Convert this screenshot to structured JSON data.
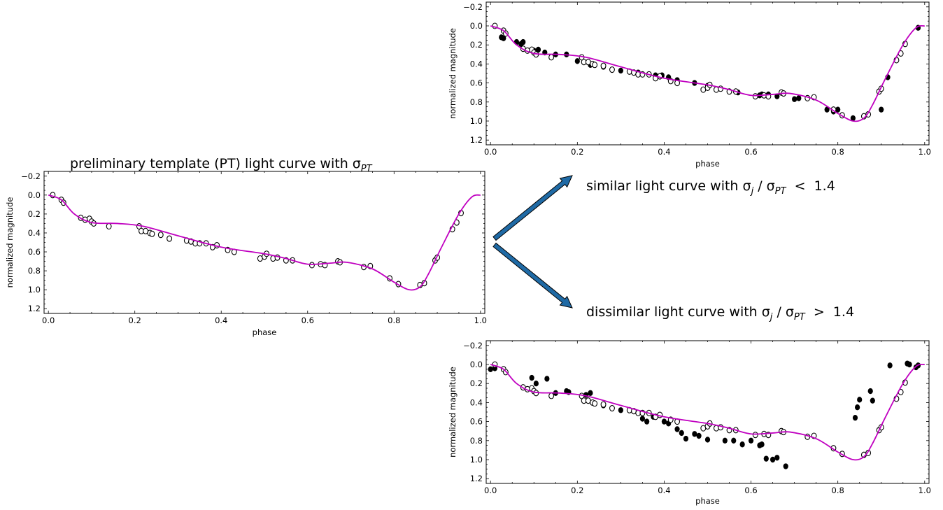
{
  "annotations": {
    "pt_title": "preliminary template (PT) light curve with σ",
    "pt_title_sub": "PT",
    "similar_prefix": "similar light curve with σ",
    "similar_sub_j": "j",
    "similar_mid": " / σ",
    "similar_sub_pt": "PT",
    "similar_rel": "  <  1.4",
    "dissimilar_prefix": "dissimilar light curve with σ",
    "dissimilar_sub_j": "j",
    "dissimilar_mid": " / σ",
    "dissimilar_sub_pt": "PT",
    "dissimilar_rel": "  >  1.4"
  },
  "colors": {
    "template": "#c000c0",
    "arrow_fill": "#1f6aa5",
    "arrow_edge": "#000000",
    "points": "#000000",
    "open_fill": "#ffffff"
  },
  "chart_data": [
    {
      "id": "preliminary-template",
      "type": "scatter",
      "title": "",
      "xlabel": "phase",
      "ylabel": "normalized magnitude",
      "xlim": [
        -0.01,
        1.01
      ],
      "ylim": [
        -0.25,
        1.25
      ],
      "y_inverted": true,
      "xticks": [
        "0.0",
        "0.2",
        "0.4",
        "0.6",
        "0.8",
        "1.0"
      ],
      "yticks": [
        "−0.2",
        "0.0",
        "0.2",
        "0.4",
        "0.6",
        "0.8",
        "1.0",
        "1.2"
      ],
      "grid": false,
      "template_curve": [
        [
          0.0,
          0.0
        ],
        [
          0.03,
          0.05
        ],
        [
          0.06,
          0.2
        ],
        [
          0.1,
          0.29
        ],
        [
          0.16,
          0.3
        ],
        [
          0.22,
          0.33
        ],
        [
          0.3,
          0.43
        ],
        [
          0.4,
          0.55
        ],
        [
          0.5,
          0.62
        ],
        [
          0.55,
          0.67
        ],
        [
          0.6,
          0.73
        ],
        [
          0.65,
          0.72
        ],
        [
          0.69,
          0.71
        ],
        [
          0.75,
          0.78
        ],
        [
          0.8,
          0.92
        ],
        [
          0.835,
          1.0
        ],
        [
          0.86,
          0.97
        ],
        [
          0.88,
          0.83
        ],
        [
          0.91,
          0.55
        ],
        [
          0.95,
          0.2
        ],
        [
          0.98,
          0.02
        ],
        [
          1.0,
          0.0
        ]
      ],
      "open_points": [
        [
          0.01,
          0.0
        ],
        [
          0.03,
          0.05
        ],
        [
          0.035,
          0.08
        ],
        [
          0.075,
          0.24
        ],
        [
          0.085,
          0.26
        ],
        [
          0.095,
          0.25
        ],
        [
          0.1,
          0.28
        ],
        [
          0.105,
          0.3
        ],
        [
          0.14,
          0.33
        ],
        [
          0.21,
          0.33
        ],
        [
          0.215,
          0.38
        ],
        [
          0.225,
          0.38
        ],
        [
          0.235,
          0.4
        ],
        [
          0.24,
          0.41
        ],
        [
          0.26,
          0.42
        ],
        [
          0.28,
          0.46
        ],
        [
          0.32,
          0.48
        ],
        [
          0.33,
          0.49
        ],
        [
          0.34,
          0.51
        ],
        [
          0.35,
          0.51
        ],
        [
          0.365,
          0.51
        ],
        [
          0.38,
          0.55
        ],
        [
          0.39,
          0.53
        ],
        [
          0.415,
          0.58
        ],
        [
          0.43,
          0.6
        ],
        [
          0.49,
          0.67
        ],
        [
          0.5,
          0.65
        ],
        [
          0.505,
          0.62
        ],
        [
          0.52,
          0.67
        ],
        [
          0.53,
          0.66
        ],
        [
          0.55,
          0.69
        ],
        [
          0.565,
          0.69
        ],
        [
          0.61,
          0.74
        ],
        [
          0.63,
          0.73
        ],
        [
          0.64,
          0.74
        ],
        [
          0.67,
          0.7
        ],
        [
          0.675,
          0.71
        ],
        [
          0.73,
          0.76
        ],
        [
          0.745,
          0.75
        ],
        [
          0.79,
          0.88
        ],
        [
          0.81,
          0.94
        ],
        [
          0.86,
          0.95
        ],
        [
          0.87,
          0.93
        ],
        [
          0.895,
          0.69
        ],
        [
          0.9,
          0.66
        ],
        [
          0.935,
          0.36
        ],
        [
          0.945,
          0.29
        ],
        [
          0.955,
          0.19
        ]
      ],
      "filled_points": []
    },
    {
      "id": "similar",
      "type": "scatter",
      "title": "",
      "xlabel": "phase",
      "ylabel": "normalized magnitude",
      "xlim": [
        -0.01,
        1.01
      ],
      "ylim": [
        -0.25,
        1.25
      ],
      "y_inverted": true,
      "xticks": [
        "0.0",
        "0.2",
        "0.4",
        "0.6",
        "0.8",
        "1.0"
      ],
      "yticks": [
        "−0.2",
        "0.0",
        "0.2",
        "0.4",
        "0.6",
        "0.8",
        "1.0",
        "1.2"
      ],
      "grid": false,
      "template_curve": [
        [
          0.0,
          0.0
        ],
        [
          0.03,
          0.05
        ],
        [
          0.06,
          0.2
        ],
        [
          0.1,
          0.29
        ],
        [
          0.16,
          0.3
        ],
        [
          0.22,
          0.33
        ],
        [
          0.3,
          0.43
        ],
        [
          0.4,
          0.55
        ],
        [
          0.5,
          0.62
        ],
        [
          0.55,
          0.67
        ],
        [
          0.6,
          0.73
        ],
        [
          0.65,
          0.72
        ],
        [
          0.69,
          0.71
        ],
        [
          0.75,
          0.78
        ],
        [
          0.8,
          0.92
        ],
        [
          0.835,
          1.0
        ],
        [
          0.86,
          0.97
        ],
        [
          0.88,
          0.83
        ],
        [
          0.91,
          0.55
        ],
        [
          0.95,
          0.2
        ],
        [
          0.98,
          0.02
        ],
        [
          1.0,
          0.0
        ]
      ],
      "open_points": [
        [
          0.01,
          0.0
        ],
        [
          0.03,
          0.05
        ],
        [
          0.035,
          0.08
        ],
        [
          0.075,
          0.24
        ],
        [
          0.085,
          0.26
        ],
        [
          0.095,
          0.25
        ],
        [
          0.1,
          0.28
        ],
        [
          0.105,
          0.3
        ],
        [
          0.14,
          0.33
        ],
        [
          0.21,
          0.33
        ],
        [
          0.215,
          0.38
        ],
        [
          0.225,
          0.38
        ],
        [
          0.235,
          0.4
        ],
        [
          0.24,
          0.41
        ],
        [
          0.26,
          0.42
        ],
        [
          0.28,
          0.46
        ],
        [
          0.32,
          0.48
        ],
        [
          0.33,
          0.49
        ],
        [
          0.34,
          0.51
        ],
        [
          0.35,
          0.51
        ],
        [
          0.365,
          0.51
        ],
        [
          0.38,
          0.55
        ],
        [
          0.39,
          0.53
        ],
        [
          0.415,
          0.58
        ],
        [
          0.43,
          0.6
        ],
        [
          0.49,
          0.67
        ],
        [
          0.5,
          0.65
        ],
        [
          0.505,
          0.62
        ],
        [
          0.52,
          0.67
        ],
        [
          0.53,
          0.66
        ],
        [
          0.55,
          0.69
        ],
        [
          0.565,
          0.69
        ],
        [
          0.61,
          0.74
        ],
        [
          0.63,
          0.73
        ],
        [
          0.64,
          0.74
        ],
        [
          0.67,
          0.7
        ],
        [
          0.675,
          0.71
        ],
        [
          0.73,
          0.76
        ],
        [
          0.745,
          0.75
        ],
        [
          0.79,
          0.88
        ],
        [
          0.81,
          0.94
        ],
        [
          0.86,
          0.95
        ],
        [
          0.87,
          0.93
        ],
        [
          0.895,
          0.69
        ],
        [
          0.9,
          0.66
        ],
        [
          0.935,
          0.36
        ],
        [
          0.945,
          0.29
        ],
        [
          0.955,
          0.19
        ]
      ],
      "filled_points": [
        [
          0.025,
          0.12
        ],
        [
          0.03,
          0.13
        ],
        [
          0.06,
          0.17
        ],
        [
          0.07,
          0.19
        ],
        [
          0.075,
          0.17
        ],
        [
          0.1,
          0.26
        ],
        [
          0.11,
          0.25
        ],
        [
          0.125,
          0.28
        ],
        [
          0.15,
          0.3
        ],
        [
          0.175,
          0.3
        ],
        [
          0.2,
          0.37
        ],
        [
          0.23,
          0.41
        ],
        [
          0.26,
          0.43
        ],
        [
          0.3,
          0.47
        ],
        [
          0.34,
          0.49
        ],
        [
          0.38,
          0.52
        ],
        [
          0.395,
          0.52
        ],
        [
          0.41,
          0.54
        ],
        [
          0.43,
          0.57
        ],
        [
          0.47,
          0.6
        ],
        [
          0.5,
          0.63
        ],
        [
          0.55,
          0.69
        ],
        [
          0.57,
          0.7
        ],
        [
          0.62,
          0.73
        ],
        [
          0.625,
          0.72
        ],
        [
          0.64,
          0.72
        ],
        [
          0.66,
          0.74
        ],
        [
          0.7,
          0.77
        ],
        [
          0.71,
          0.76
        ],
        [
          0.775,
          0.88
        ],
        [
          0.79,
          0.9
        ],
        [
          0.8,
          0.88
        ],
        [
          0.835,
          0.97
        ],
        [
          0.9,
          0.88
        ],
        [
          0.915,
          0.54
        ],
        [
          0.985,
          0.02
        ]
      ]
    },
    {
      "id": "dissimilar",
      "type": "scatter",
      "title": "",
      "xlabel": "phase",
      "ylabel": "normalized magnitude",
      "xlim": [
        -0.01,
        1.01
      ],
      "ylim": [
        -0.25,
        1.25
      ],
      "y_inverted": true,
      "xticks": [
        "0.0",
        "0.2",
        "0.4",
        "0.6",
        "0.8",
        "1.0"
      ],
      "yticks": [
        "−0.2",
        "0.0",
        "0.2",
        "0.4",
        "0.6",
        "0.8",
        "1.0",
        "1.2"
      ],
      "grid": false,
      "template_curve": [
        [
          0.0,
          0.0
        ],
        [
          0.03,
          0.05
        ],
        [
          0.06,
          0.2
        ],
        [
          0.1,
          0.29
        ],
        [
          0.16,
          0.3
        ],
        [
          0.22,
          0.33
        ],
        [
          0.3,
          0.43
        ],
        [
          0.4,
          0.55
        ],
        [
          0.5,
          0.62
        ],
        [
          0.55,
          0.67
        ],
        [
          0.6,
          0.73
        ],
        [
          0.65,
          0.72
        ],
        [
          0.69,
          0.71
        ],
        [
          0.75,
          0.78
        ],
        [
          0.8,
          0.92
        ],
        [
          0.835,
          1.0
        ],
        [
          0.86,
          0.97
        ],
        [
          0.88,
          0.83
        ],
        [
          0.91,
          0.55
        ],
        [
          0.95,
          0.2
        ],
        [
          0.98,
          0.02
        ],
        [
          1.0,
          0.0
        ]
      ],
      "open_points": [
        [
          0.01,
          0.0
        ],
        [
          0.03,
          0.05
        ],
        [
          0.035,
          0.08
        ],
        [
          0.075,
          0.24
        ],
        [
          0.085,
          0.26
        ],
        [
          0.095,
          0.25
        ],
        [
          0.1,
          0.28
        ],
        [
          0.105,
          0.3
        ],
        [
          0.14,
          0.33
        ],
        [
          0.21,
          0.33
        ],
        [
          0.215,
          0.38
        ],
        [
          0.225,
          0.38
        ],
        [
          0.235,
          0.4
        ],
        [
          0.24,
          0.41
        ],
        [
          0.26,
          0.42
        ],
        [
          0.28,
          0.46
        ],
        [
          0.32,
          0.48
        ],
        [
          0.33,
          0.49
        ],
        [
          0.34,
          0.51
        ],
        [
          0.35,
          0.51
        ],
        [
          0.365,
          0.51
        ],
        [
          0.38,
          0.55
        ],
        [
          0.39,
          0.53
        ],
        [
          0.415,
          0.58
        ],
        [
          0.43,
          0.6
        ],
        [
          0.49,
          0.67
        ],
        [
          0.5,
          0.65
        ],
        [
          0.505,
          0.62
        ],
        [
          0.52,
          0.67
        ],
        [
          0.53,
          0.66
        ],
        [
          0.55,
          0.69
        ],
        [
          0.565,
          0.69
        ],
        [
          0.61,
          0.74
        ],
        [
          0.63,
          0.73
        ],
        [
          0.64,
          0.74
        ],
        [
          0.67,
          0.7
        ],
        [
          0.675,
          0.71
        ],
        [
          0.73,
          0.76
        ],
        [
          0.745,
          0.75
        ],
        [
          0.79,
          0.88
        ],
        [
          0.81,
          0.94
        ],
        [
          0.86,
          0.95
        ],
        [
          0.87,
          0.93
        ],
        [
          0.895,
          0.69
        ],
        [
          0.9,
          0.66
        ],
        [
          0.935,
          0.36
        ],
        [
          0.945,
          0.29
        ],
        [
          0.955,
          0.19
        ]
      ],
      "filled_points": [
        [
          0.0,
          0.05
        ],
        [
          0.01,
          0.04
        ],
        [
          0.095,
          0.14
        ],
        [
          0.105,
          0.2
        ],
        [
          0.13,
          0.15
        ],
        [
          0.15,
          0.3
        ],
        [
          0.175,
          0.28
        ],
        [
          0.18,
          0.29
        ],
        [
          0.22,
          0.32
        ],
        [
          0.23,
          0.3
        ],
        [
          0.26,
          0.43
        ],
        [
          0.28,
          0.46
        ],
        [
          0.3,
          0.48
        ],
        [
          0.34,
          0.51
        ],
        [
          0.35,
          0.57
        ],
        [
          0.36,
          0.6
        ],
        [
          0.375,
          0.55
        ],
        [
          0.4,
          0.6
        ],
        [
          0.41,
          0.62
        ],
        [
          0.43,
          0.68
        ],
        [
          0.44,
          0.72
        ],
        [
          0.45,
          0.78
        ],
        [
          0.47,
          0.73
        ],
        [
          0.48,
          0.75
        ],
        [
          0.5,
          0.79
        ],
        [
          0.54,
          0.8
        ],
        [
          0.56,
          0.8
        ],
        [
          0.58,
          0.84
        ],
        [
          0.6,
          0.8
        ],
        [
          0.62,
          0.85
        ],
        [
          0.625,
          0.84
        ],
        [
          0.635,
          0.99
        ],
        [
          0.65,
          1.0
        ],
        [
          0.66,
          0.98
        ],
        [
          0.68,
          1.07
        ],
        [
          0.84,
          0.56
        ],
        [
          0.845,
          0.45
        ],
        [
          0.85,
          0.37
        ],
        [
          0.875,
          0.28
        ],
        [
          0.88,
          0.38
        ],
        [
          0.92,
          0.01
        ],
        [
          0.96,
          -0.01
        ],
        [
          0.965,
          0.0
        ],
        [
          0.98,
          0.03
        ],
        [
          0.985,
          0.01
        ]
      ]
    }
  ]
}
